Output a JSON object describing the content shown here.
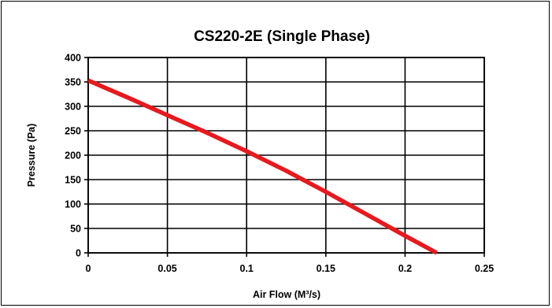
{
  "chart_data": {
    "type": "line",
    "title": "CS220-2E (Single Phase)",
    "xlabel": "Air Flow (M³/s)",
    "ylabel": "Pressure (Pa)",
    "xlim": [
      0,
      0.25
    ],
    "ylim": [
      0,
      400
    ],
    "x_ticks": [
      "0",
      "0.05",
      "0.1",
      "0.15",
      "0.2",
      "0.25"
    ],
    "y_ticks": [
      "0",
      "50",
      "100",
      "150",
      "200",
      "250",
      "300",
      "350",
      "400"
    ],
    "grid": true,
    "legend": "none",
    "series": [
      {
        "color": "#e8191e",
        "x": [
          0,
          0.025,
          0.05,
          0.075,
          0.1,
          0.125,
          0.15,
          0.175,
          0.2,
          0.22
        ],
        "y": [
          353,
          318,
          282,
          246,
          208,
          168,
          125,
          80,
          35,
          0
        ]
      }
    ]
  }
}
